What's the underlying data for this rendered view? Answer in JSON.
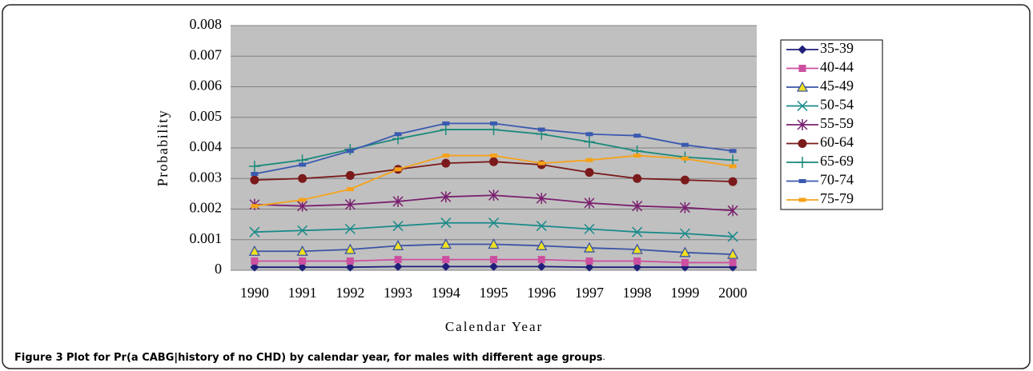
{
  "chart_data": {
    "type": "line",
    "y_label": "Probability",
    "x_label": "Calendar Year",
    "categories": [
      "1990",
      "1991",
      "1992",
      "1993",
      "1994",
      "1995",
      "1996",
      "1997",
      "1998",
      "1999",
      "2000"
    ],
    "ylim": [
      0,
      0.008
    ],
    "yticks": [
      0,
      0.001,
      0.002,
      0.003,
      0.004,
      0.005,
      0.006,
      0.007,
      0.008
    ],
    "grid": true,
    "legend": "right",
    "series": [
      {
        "name": "35-39",
        "color": "#1f1f7a",
        "marker": "diamond",
        "values": [
          0.0001,
          0.0001,
          0.0001,
          0.00012,
          0.00012,
          0.00012,
          0.00012,
          0.0001,
          0.0001,
          0.0001,
          0.0001
        ]
      },
      {
        "name": "40-44",
        "color": "#cc4fa0",
        "marker": "square",
        "values": [
          0.0003,
          0.0003,
          0.0003,
          0.00035,
          0.00035,
          0.00035,
          0.00035,
          0.0003,
          0.0003,
          0.00025,
          0.00025
        ]
      },
      {
        "name": "45-49",
        "color": "#3a53a4",
        "marker": "triangle",
        "values": [
          0.00062,
          0.00062,
          0.00068,
          0.0008,
          0.00085,
          0.00085,
          0.0008,
          0.00073,
          0.00068,
          0.00058,
          0.00052
        ]
      },
      {
        "name": "50-54",
        "color": "#1a8a8a",
        "marker": "x",
        "values": [
          0.00125,
          0.0013,
          0.00135,
          0.00145,
          0.00155,
          0.00155,
          0.00145,
          0.00135,
          0.00125,
          0.0012,
          0.0011
        ]
      },
      {
        "name": "55-59",
        "color": "#7a1f6e",
        "marker": "star",
        "values": [
          0.00215,
          0.0021,
          0.00215,
          0.00225,
          0.0024,
          0.00245,
          0.00235,
          0.0022,
          0.0021,
          0.00205,
          0.00195
        ]
      },
      {
        "name": "60-64",
        "color": "#7a1a1a",
        "marker": "circle",
        "values": [
          0.00295,
          0.003,
          0.0031,
          0.0033,
          0.0035,
          0.00355,
          0.00345,
          0.0032,
          0.003,
          0.00295,
          0.0029
        ]
      },
      {
        "name": "65-69",
        "color": "#1a8a7a",
        "marker": "plus",
        "values": [
          0.0034,
          0.0036,
          0.00395,
          0.0043,
          0.0046,
          0.0046,
          0.00445,
          0.0042,
          0.0039,
          0.0037,
          0.0036
        ]
      },
      {
        "name": "70-74",
        "color": "#3a5ab0",
        "marker": "dash",
        "values": [
          0.00315,
          0.00345,
          0.0039,
          0.00445,
          0.0048,
          0.0048,
          0.0046,
          0.00445,
          0.0044,
          0.0041,
          0.0039
        ]
      },
      {
        "name": "75-79",
        "color": "#f5a21a",
        "marker": "dash",
        "values": [
          0.0021,
          0.0023,
          0.00265,
          0.0033,
          0.00375,
          0.00375,
          0.0035,
          0.0036,
          0.00375,
          0.00365,
          0.0034
        ]
      }
    ]
  },
  "caption": {
    "label": "Figure 3",
    "text": "Plot for Pr(a CABG|history of no CHD) by calendar year, for males with different age groups",
    "end": "."
  }
}
